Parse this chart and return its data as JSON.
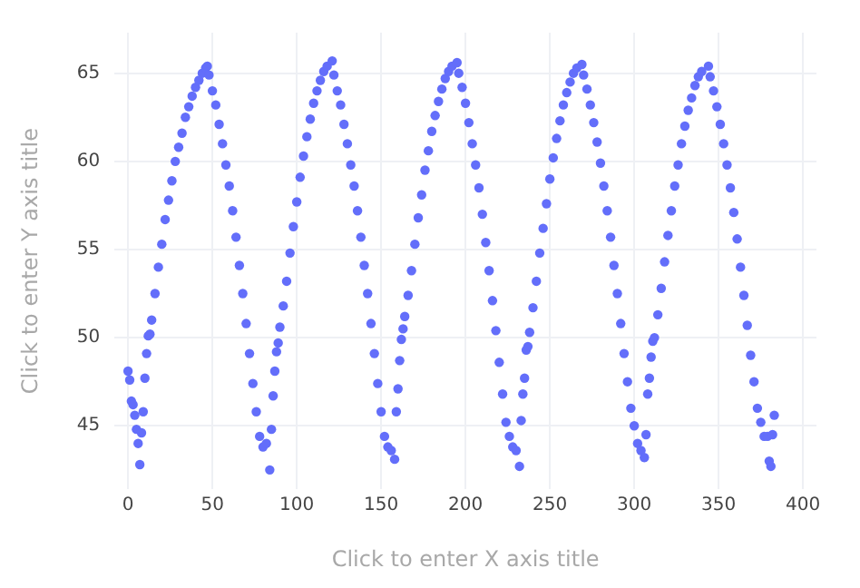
{
  "chart_data": {
    "type": "scatter",
    "xlabel": "Click to enter X axis title",
    "ylabel": "Click to enter Y axis title",
    "xlim": [
      -8,
      408
    ],
    "ylim": [
      41.4,
      67.3
    ],
    "xticks": [
      0,
      50,
      100,
      150,
      200,
      250,
      300,
      350,
      400
    ],
    "yticks": [
      45,
      50,
      55,
      60,
      65
    ],
    "grid": true,
    "legend": false,
    "marker": "circle",
    "series": [
      {
        "color": "#636efa",
        "x": [
          0,
          1,
          2,
          3,
          4,
          5,
          6,
          7,
          8,
          9,
          10,
          11,
          12,
          13,
          14,
          16,
          18,
          20,
          22,
          24,
          26,
          28,
          30,
          32,
          34,
          36,
          38,
          40,
          42,
          44,
          46,
          47,
          48,
          50,
          52,
          54,
          56,
          58,
          60,
          62,
          64,
          66,
          68,
          70,
          72,
          74,
          76,
          78,
          80,
          82,
          84,
          85,
          86,
          87,
          88,
          89,
          90,
          92,
          94,
          96,
          98,
          100,
          102,
          104,
          106,
          108,
          110,
          112,
          114,
          116,
          118,
          121,
          122,
          124,
          126,
          128,
          130,
          132,
          134,
          136,
          138,
          140,
          142,
          144,
          146,
          148,
          150,
          152,
          154,
          156,
          158,
          159,
          160,
          161,
          162,
          163,
          164,
          166,
          168,
          170,
          172,
          174,
          176,
          178,
          180,
          182,
          184,
          186,
          188,
          190,
          192,
          195,
          196,
          198,
          200,
          202,
          204,
          206,
          208,
          210,
          212,
          214,
          216,
          218,
          220,
          222,
          224,
          226,
          228,
          230,
          232,
          233,
          234,
          235,
          236,
          237,
          238,
          240,
          242,
          244,
          246,
          248,
          250,
          252,
          254,
          256,
          258,
          260,
          262,
          264,
          266,
          269,
          270,
          272,
          274,
          276,
          278,
          280,
          282,
          284,
          286,
          288,
          290,
          292,
          294,
          296,
          298,
          300,
          302,
          304,
          306,
          307,
          308,
          309,
          310,
          311,
          312,
          314,
          316,
          318,
          320,
          322,
          324,
          326,
          328,
          330,
          332,
          334,
          336,
          338,
          340,
          344,
          345,
          347,
          349,
          351,
          353,
          355,
          357,
          359,
          361,
          363,
          365,
          367,
          369,
          371,
          373,
          375,
          377,
          379,
          380,
          381,
          382,
          383
        ],
        "values": [
          48.1,
          47.6,
          46.4,
          46.2,
          45.6,
          44.8,
          44.0,
          42.8,
          44.6,
          45.8,
          47.7,
          49.1,
          50.1,
          50.2,
          51.0,
          52.5,
          54.0,
          55.3,
          56.7,
          57.8,
          58.9,
          60.0,
          60.8,
          61.6,
          62.5,
          63.1,
          63.7,
          64.2,
          64.6,
          65.0,
          65.3,
          65.4,
          64.9,
          64.0,
          63.2,
          62.1,
          61.0,
          59.8,
          58.6,
          57.2,
          55.7,
          54.1,
          52.5,
          50.8,
          49.1,
          47.4,
          45.8,
          44.4,
          43.8,
          44.0,
          42.5,
          44.8,
          46.7,
          48.1,
          49.2,
          49.7,
          50.6,
          51.8,
          53.2,
          54.8,
          56.3,
          57.7,
          59.1,
          60.3,
          61.4,
          62.4,
          63.3,
          64.0,
          64.6,
          65.1,
          65.4,
          65.7,
          64.9,
          64.0,
          63.2,
          62.1,
          61.0,
          59.8,
          58.6,
          57.2,
          55.7,
          54.1,
          52.5,
          50.8,
          49.1,
          47.4,
          45.8,
          44.4,
          43.8,
          43.6,
          43.1,
          45.8,
          47.1,
          48.7,
          49.9,
          50.5,
          51.2,
          52.4,
          53.8,
          55.3,
          56.8,
          58.1,
          59.5,
          60.6,
          61.7,
          62.6,
          63.4,
          64.1,
          64.7,
          65.1,
          65.4,
          65.6,
          65.0,
          64.2,
          63.3,
          62.2,
          61.0,
          59.8,
          58.5,
          57.0,
          55.4,
          53.8,
          52.1,
          50.4,
          48.6,
          46.8,
          45.2,
          44.4,
          43.8,
          43.6,
          42.7,
          45.3,
          46.8,
          47.7,
          49.3,
          49.5,
          50.3,
          51.7,
          53.2,
          54.8,
          56.2,
          57.6,
          59.0,
          60.2,
          61.3,
          62.3,
          63.2,
          63.9,
          64.5,
          65.0,
          65.3,
          65.5,
          64.9,
          64.1,
          63.2,
          62.2,
          61.1,
          59.9,
          58.6,
          57.2,
          55.7,
          54.1,
          52.5,
          50.8,
          49.1,
          47.5,
          46.0,
          45.0,
          44.0,
          43.6,
          43.2,
          44.5,
          46.8,
          47.7,
          48.9,
          49.8,
          50.0,
          51.3,
          52.8,
          54.3,
          55.8,
          57.2,
          58.6,
          59.8,
          61.0,
          62.0,
          62.9,
          63.6,
          64.3,
          64.8,
          65.1,
          65.4,
          64.8,
          64.0,
          63.1,
          62.1,
          61.0,
          59.8,
          58.5,
          57.1,
          55.6,
          54.0,
          52.4,
          50.7,
          49.0,
          47.5,
          46.0,
          45.2,
          44.4,
          44.4,
          43.0,
          42.7,
          44.5,
          45.6
        ]
      }
    ]
  }
}
